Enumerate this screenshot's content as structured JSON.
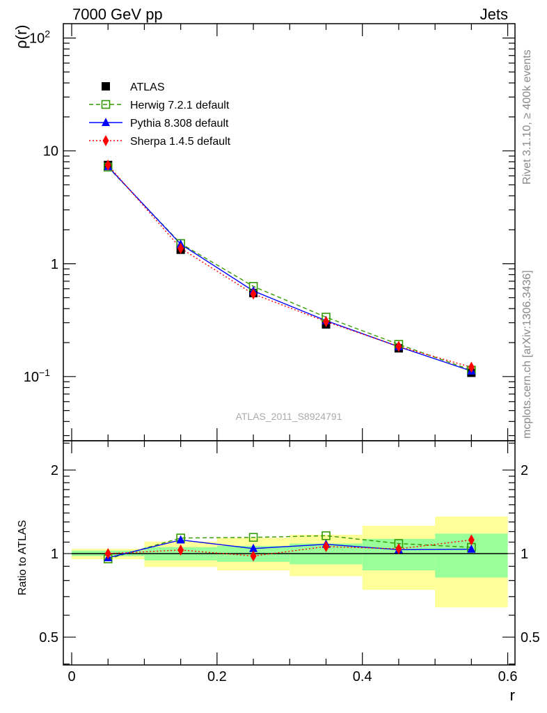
{
  "header": {
    "left": "7000 GeV pp",
    "right": "Jets"
  },
  "side_labels": {
    "top": "Rivet 3.1.10, ≥ 400k events",
    "bottom": "mcplots.cern.ch [arXiv:1306.3436]"
  },
  "watermark": "ATLAS_2011_S8924791",
  "colors": {
    "data": "#000000",
    "herwig": "#339900",
    "pythia": "#0000ff",
    "sherpa": "#ff0000",
    "band_inner": "#99ff99",
    "band_outer": "#ffff99"
  },
  "chart_data": [
    {
      "type": "line",
      "panel": "main",
      "ylabel": "ρ(r)",
      "yscale": "log",
      "xlim": [
        -0.0115,
        0.61
      ],
      "ylim": [
        0.027,
        134
      ],
      "ytick_labels": [
        {
          "v": 100,
          "label": "10",
          "sup": "2"
        },
        {
          "v": 10,
          "label": "10",
          "sup": ""
        },
        {
          "v": 1,
          "label": "1",
          "sup": ""
        },
        {
          "v": 0.1,
          "label": "10",
          "sup": "−1"
        }
      ],
      "x": [
        0.05,
        0.15,
        0.25,
        0.35,
        0.45,
        0.55
      ],
      "legend_position": "top-left",
      "series": [
        {
          "name": "ATLAS",
          "key": "data",
          "marker": "square-filled",
          "line": "none",
          "values": [
            7.5,
            1.33,
            0.55,
            0.29,
            0.178,
            0.108
          ]
        },
        {
          "name": "Herwig 7.2.1 default",
          "key": "herwig",
          "marker": "square-open",
          "line": "dashed",
          "values": [
            7.18,
            1.51,
            0.63,
            0.336,
            0.193,
            0.114
          ]
        },
        {
          "name": "Pythia 8.308 default",
          "key": "pythia",
          "marker": "triangle",
          "line": "solid",
          "values": [
            7.25,
            1.49,
            0.574,
            0.313,
            0.184,
            0.112
          ]
        },
        {
          "name": "Sherpa 1.4.5 default",
          "key": "sherpa",
          "marker": "diamond",
          "line": "dotted",
          "values": [
            7.48,
            1.37,
            0.539,
            0.307,
            0.185,
            0.121
          ]
        }
      ]
    },
    {
      "type": "line",
      "panel": "ratio",
      "ylabel": "Ratio to ATLAS",
      "xlabel": "r",
      "yscale": "log",
      "xlim": [
        -0.0115,
        0.61
      ],
      "ylim": [
        0.397,
        2.55
      ],
      "ytick_labels": [
        {
          "v": 2,
          "label": "2"
        },
        {
          "v": 1,
          "label": "1"
        },
        {
          "v": 0.5,
          "label": "0.5"
        }
      ],
      "xtick_labels": [
        {
          "v": 0,
          "label": "0"
        },
        {
          "v": 0.2,
          "label": "0.2"
        },
        {
          "v": 0.4,
          "label": "0.4"
        },
        {
          "v": 0.6,
          "label": "0.6"
        }
      ],
      "bins": [
        [
          0,
          0.1
        ],
        [
          0.1,
          0.2
        ],
        [
          0.2,
          0.3
        ],
        [
          0.3,
          0.4
        ],
        [
          0.4,
          0.5
        ],
        [
          0.5,
          0.6
        ]
      ],
      "band_inner": [
        [
          0.98,
          1.025
        ],
        [
          0.945,
          1.055
        ],
        [
          0.934,
          1.066
        ],
        [
          0.915,
          1.087
        ],
        [
          0.87,
          1.13
        ],
        [
          0.82,
          1.18
        ]
      ],
      "band_outer": [
        [
          0.955,
          1.04
        ],
        [
          0.895,
          1.105
        ],
        [
          0.87,
          1.14
        ],
        [
          0.83,
          1.17
        ],
        [
          0.74,
          1.26
        ],
        [
          0.64,
          1.36
        ]
      ],
      "x": [
        0.05,
        0.15,
        0.25,
        0.35,
        0.45,
        0.55
      ],
      "series": [
        {
          "name": "Herwig 7.2.1 default",
          "key": "herwig",
          "marker": "square-open",
          "line": "dashed",
          "values": [
            0.957,
            1.138,
            1.144,
            1.16,
            1.087,
            1.053
          ]
        },
        {
          "name": "Pythia 8.308 default",
          "key": "pythia",
          "marker": "triangle",
          "line": "solid",
          "values": [
            0.966,
            1.12,
            1.043,
            1.08,
            1.033,
            1.037
          ]
        },
        {
          "name": "Sherpa 1.4.5 default",
          "key": "sherpa",
          "marker": "diamond",
          "line": "dotted",
          "values": [
            1.0,
            1.03,
            0.98,
            1.06,
            1.04,
            1.12
          ]
        }
      ]
    }
  ]
}
